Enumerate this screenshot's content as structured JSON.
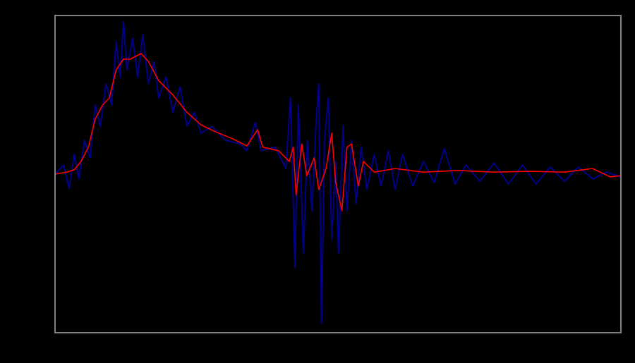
{
  "chart_data": {
    "type": "line",
    "title": "",
    "xlabel": "",
    "ylabel": "",
    "xlim": [
      0,
      100
    ],
    "ylim": [
      -4,
      4
    ],
    "y_gridlines": false,
    "background": "#000000",
    "plot_border_color": "#808080",
    "legend": "none",
    "series": [
      {
        "color": "#00008b",
        "points": [
          [
            0,
            0
          ],
          [
            1.5,
            0.23
          ],
          [
            2.5,
            -0.36
          ],
          [
            3.4,
            0.5
          ],
          [
            4.2,
            -0.12
          ],
          [
            5.2,
            0.85
          ],
          [
            6.2,
            0.41
          ],
          [
            7.1,
            1.74
          ],
          [
            8.0,
            1.2
          ],
          [
            9.0,
            2.28
          ],
          [
            10.0,
            1.74
          ],
          [
            10.8,
            3.34
          ],
          [
            11.5,
            2.45
          ],
          [
            12.1,
            3.84
          ],
          [
            12.7,
            2.63
          ],
          [
            13.7,
            3.43
          ],
          [
            14.6,
            2.45
          ],
          [
            15.5,
            3.52
          ],
          [
            16.5,
            2.28
          ],
          [
            17.5,
            2.84
          ],
          [
            18.3,
            1.92
          ],
          [
            19.6,
            2.45
          ],
          [
            20.8,
            1.56
          ],
          [
            22.1,
            2.2
          ],
          [
            23.3,
            1.21
          ],
          [
            24.6,
            1.56
          ],
          [
            25.8,
            1.03
          ],
          [
            27.7,
            1.2
          ],
          [
            30.2,
            0.85
          ],
          [
            32.7,
            0.76
          ],
          [
            33.9,
            0.59
          ],
          [
            35.4,
            1.3
          ],
          [
            36.4,
            0.59
          ],
          [
            38.9,
            0.68
          ],
          [
            40.8,
            0.14
          ],
          [
            41.6,
            1.92
          ],
          [
            42.4,
            -2.35
          ],
          [
            43.0,
            1.74
          ],
          [
            43.9,
            -1.99
          ],
          [
            44.6,
            0.85
          ],
          [
            45.4,
            -0.92
          ],
          [
            46.1,
            1.2
          ],
          [
            46.6,
            2.28
          ],
          [
            47.1,
            -3.77
          ],
          [
            47.6,
            0.85
          ],
          [
            48.3,
            1.92
          ],
          [
            48.9,
            -1.63
          ],
          [
            49.6,
            0.32
          ],
          [
            50.1,
            -1.99
          ],
          [
            50.9,
            1.21
          ],
          [
            51.6,
            -0.92
          ],
          [
            52.4,
            0.85
          ],
          [
            53.2,
            -0.75
          ],
          [
            54.1,
            0.68
          ],
          [
            55.1,
            -0.39
          ],
          [
            56.4,
            0.5
          ],
          [
            57.6,
            -0.3
          ],
          [
            58.9,
            0.59
          ],
          [
            60.1,
            -0.39
          ],
          [
            61.4,
            0.5
          ],
          [
            63.2,
            -0.3
          ],
          [
            65.1,
            0.32
          ],
          [
            67.0,
            -0.21
          ],
          [
            68.8,
            0.64
          ],
          [
            70.7,
            -0.25
          ],
          [
            72.6,
            0.23
          ],
          [
            75.1,
            -0.18
          ],
          [
            77.6,
            0.28
          ],
          [
            80.1,
            -0.25
          ],
          [
            82.6,
            0.23
          ],
          [
            85.0,
            -0.25
          ],
          [
            87.5,
            0.18
          ],
          [
            90.0,
            -0.18
          ],
          [
            92.5,
            0.18
          ],
          [
            95.0,
            -0.12
          ],
          [
            97.5,
            0.05
          ],
          [
            100,
            -0.07
          ]
        ]
      },
      {
        "color": "#ff0000",
        "points": [
          [
            0,
            0
          ],
          [
            2.1,
            0.05
          ],
          [
            3.4,
            0.11
          ],
          [
            4.6,
            0.32
          ],
          [
            5.9,
            0.68
          ],
          [
            7.1,
            1.39
          ],
          [
            8.4,
            1.74
          ],
          [
            9.6,
            1.92
          ],
          [
            10.8,
            2.63
          ],
          [
            12.1,
            2.9
          ],
          [
            13.3,
            2.9
          ],
          [
            15.2,
            3.04
          ],
          [
            16.5,
            2.84
          ],
          [
            18.3,
            2.36
          ],
          [
            20.8,
            2.0
          ],
          [
            23.3,
            1.56
          ],
          [
            25.8,
            1.24
          ],
          [
            28.3,
            1.07
          ],
          [
            31.4,
            0.89
          ],
          [
            33.9,
            0.71
          ],
          [
            35.8,
            1.12
          ],
          [
            36.7,
            0.68
          ],
          [
            39.5,
            0.59
          ],
          [
            41.4,
            0.32
          ],
          [
            42.1,
            0.68
          ],
          [
            42.6,
            -0.53
          ],
          [
            43.6,
            0.76
          ],
          [
            44.5,
            -0.04
          ],
          [
            45.8,
            0.41
          ],
          [
            46.6,
            -0.39
          ],
          [
            47.9,
            0.14
          ],
          [
            48.9,
            1.03
          ],
          [
            49.6,
            -0.21
          ],
          [
            50.7,
            -0.92
          ],
          [
            51.6,
            0.68
          ],
          [
            52.4,
            0.76
          ],
          [
            53.6,
            -0.3
          ],
          [
            54.5,
            0.32
          ],
          [
            56.4,
            0.05
          ],
          [
            60.1,
            0.14
          ],
          [
            65.1,
            0.05
          ],
          [
            71.3,
            0.09
          ],
          [
            77.6,
            0.05
          ],
          [
            83.8,
            0.07
          ],
          [
            90.0,
            0.05
          ],
          [
            95.0,
            0.14
          ],
          [
            98.1,
            -0.07
          ],
          [
            100,
            -0.04
          ]
        ]
      }
    ]
  }
}
